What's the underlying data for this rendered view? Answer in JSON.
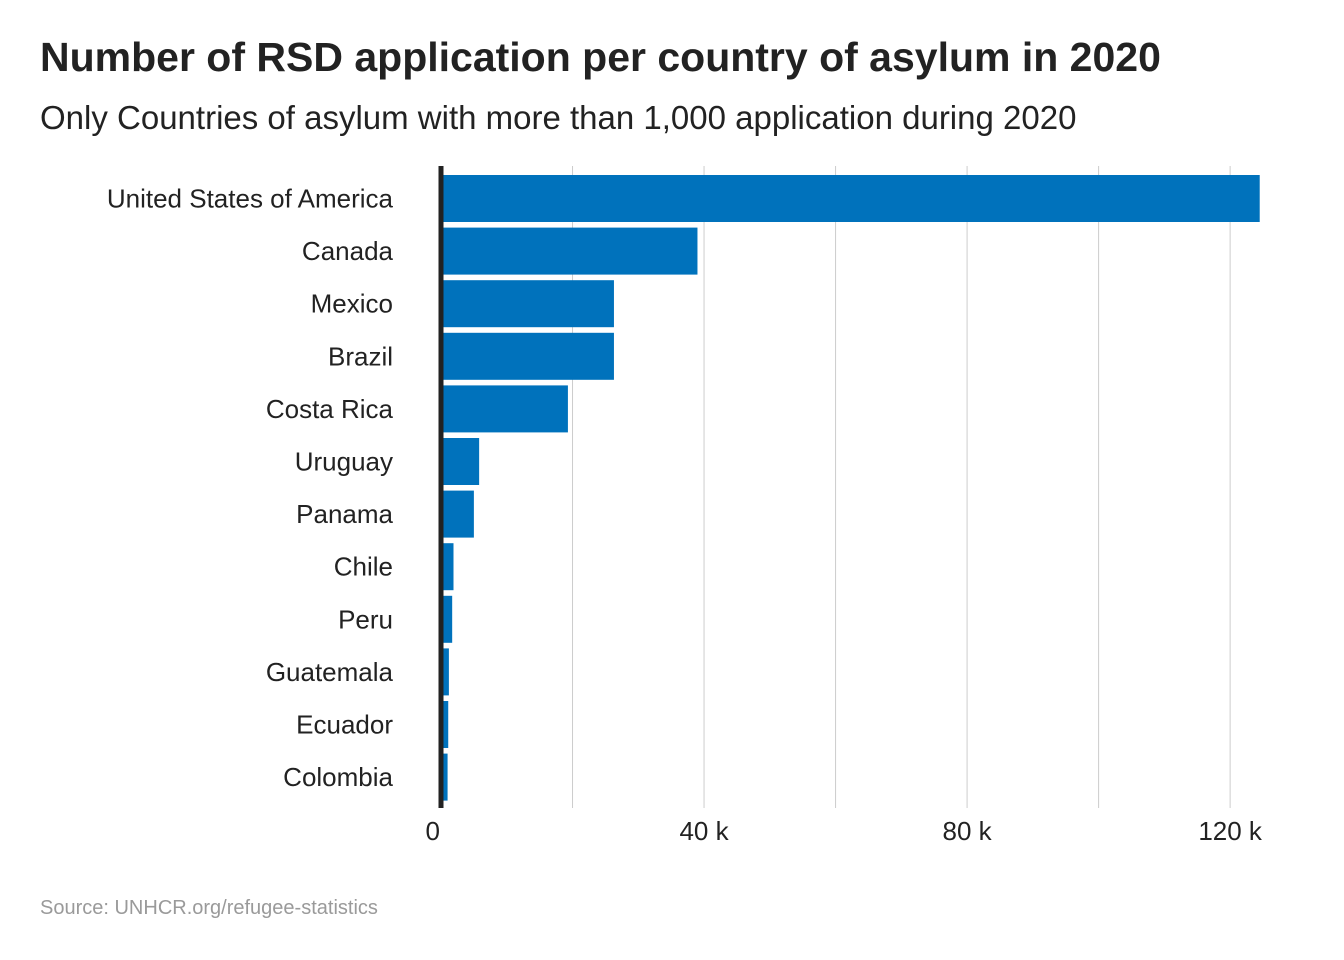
{
  "title": "Number of RSD application per country of asylum in 2020",
  "subtitle": "Only Countries of asylum with more than 1,000 application during 2020",
  "caption": "Source: UNHCR.org/refugee-statistics",
  "colors": {
    "bar": "#0072BC",
    "grid": "#cccccc",
    "axis": "#222222"
  },
  "chart_data": {
    "type": "bar",
    "orientation": "horizontal",
    "title": "Number of RSD application per country of asylum in 2020",
    "subtitle": "Only Countries of asylum with more than 1,000 application during 2020",
    "xlabel": "",
    "ylabel": "",
    "xlim": [
      0,
      125000
    ],
    "x_ticks": [
      0,
      40000,
      80000,
      120000
    ],
    "x_tick_labels": [
      "0",
      "40 k",
      "80 k",
      "120 k"
    ],
    "grid": "vertical",
    "legend": "none",
    "categories": [
      "United States of America",
      "Canada",
      "Mexico",
      "Brazil",
      "Costa Rica",
      "Uruguay",
      "Panama",
      "Chile",
      "Peru",
      "Guatemala",
      "Ecuador",
      "Colombia"
    ],
    "values": [
      124500,
      39000,
      26300,
      26300,
      19300,
      5800,
      5000,
      1900,
      1700,
      1200,
      1100,
      1000
    ]
  }
}
